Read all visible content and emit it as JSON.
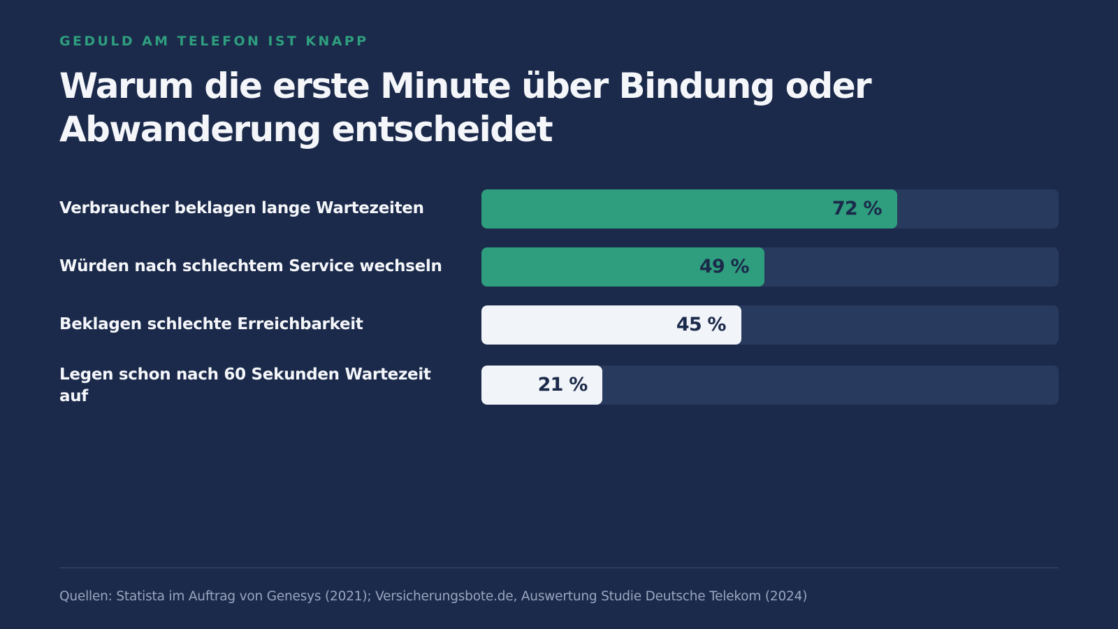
{
  "eyebrow": "GELDULD AM TELEFON IST KNAPP",
  "title": "Warum die erste Minute über Bindung oder Abwanderung entscheidet",
  "source": "Quellen: Statista im Auftrag von Genesys (2021); Versicherungsbote.de, Auswertung Studie Deutsche Telekom (2024)",
  "colors": {
    "background": "#1b2a4a",
    "accent_green": "#2e9e7e",
    "light_bar": "#f1f4f9",
    "track": "#283a5e"
  },
  "chart_data": {
    "type": "bar",
    "orientation": "horizontal",
    "ylim": [
      0,
      100
    ],
    "unit": "%",
    "categories": [
      "Verbraucher beklagen lange Wartezeiten",
      "Würden nach schlechtem Service wechseln",
      "Beklagen schlechte Erreichbarkeit",
      "Legen schon nach 60 Sekunden Wartezeit auf"
    ],
    "values": [
      72,
      49,
      45,
      21
    ],
    "value_labels": [
      "72 %",
      "49 %",
      "45 %",
      "21 %"
    ],
    "bar_colors": [
      "#2e9e7e",
      "#2e9e7e",
      "#f1f4f9",
      "#f1f4f9"
    ]
  }
}
